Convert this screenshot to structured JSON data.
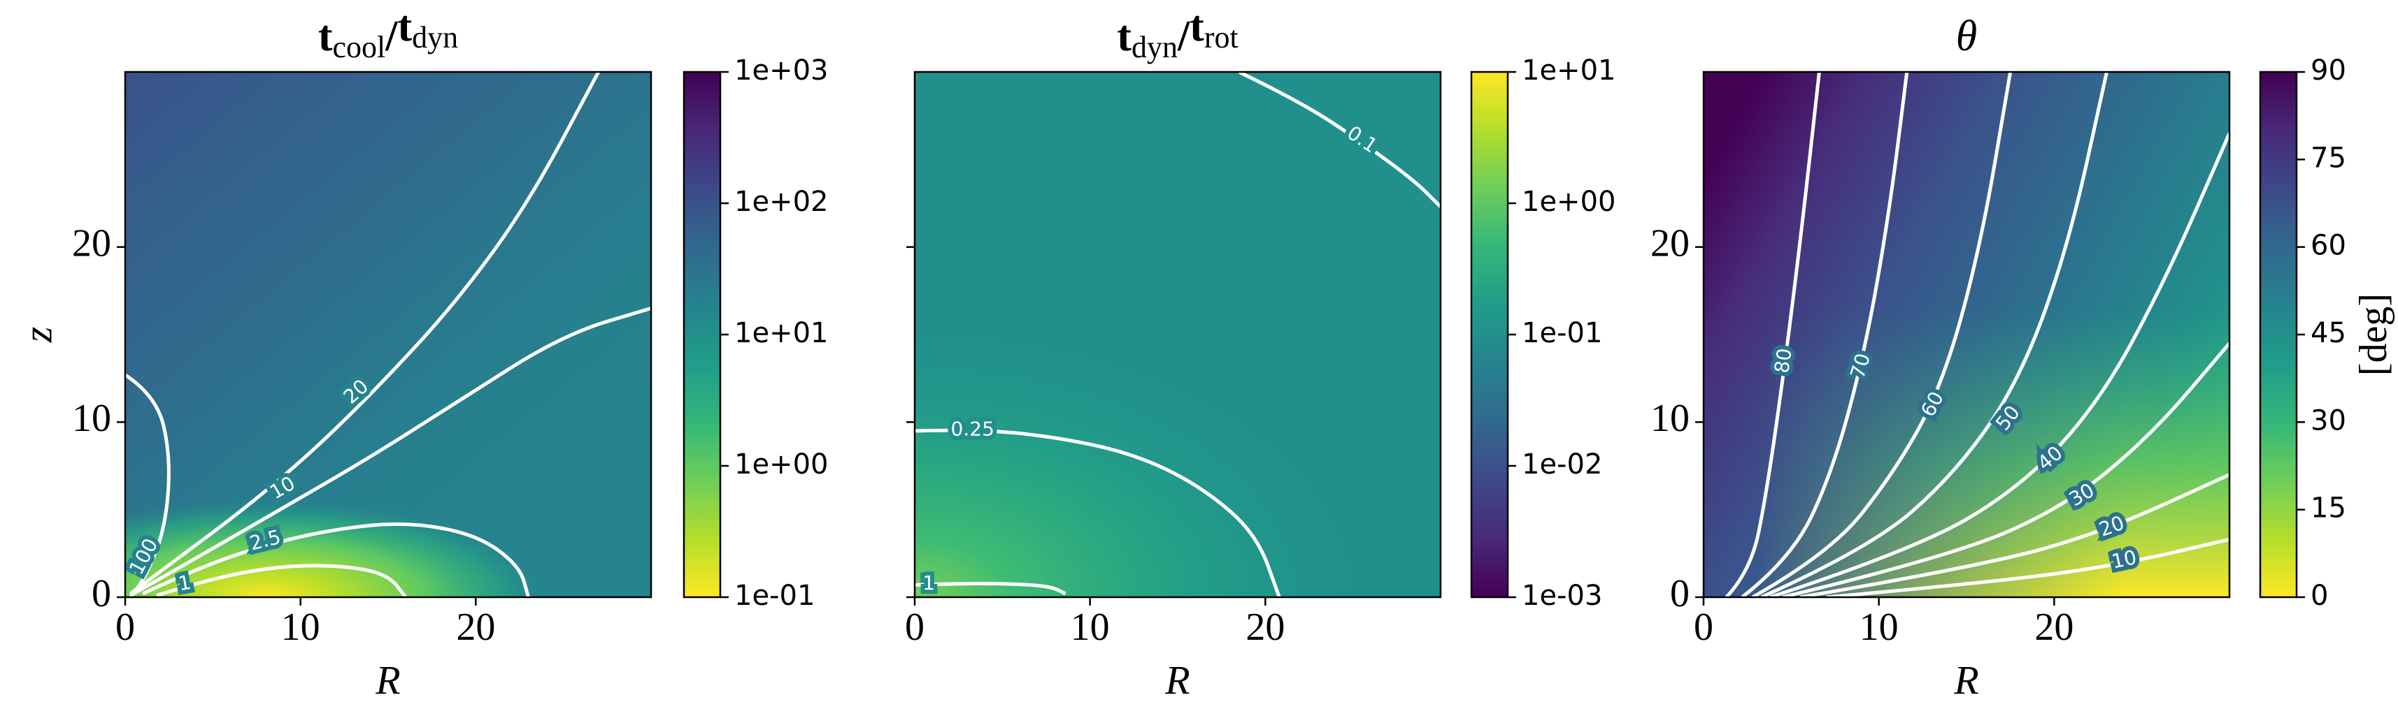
{
  "chart_data": [
    {
      "type": "heatmap",
      "title": [
        "t",
        "cool",
        "/",
        "t",
        "dyn"
      ],
      "xlabel": "R",
      "ylabel": "z",
      "xlim": [
        0,
        30
      ],
      "ylim": [
        0,
        30
      ],
      "xticks": [
        0,
        10,
        20
      ],
      "yticks": [
        0,
        10,
        20
      ],
      "ytick_labels": true,
      "contour_levels": [
        100,
        20,
        10,
        2.5,
        1
      ],
      "contour_color": "#ffffff",
      "colorbar": {
        "colormap": "viridis_r",
        "log": true,
        "lim": [
          0.1,
          1000
        ],
        "ticks": [
          {
            "value": 0.1,
            "label": "1e-01"
          },
          {
            "value": 1,
            "label": "1e+00"
          },
          {
            "value": 10,
            "label": "1e+01"
          },
          {
            "value": 100,
            "label": "1e+02"
          },
          {
            "value": 1000,
            "label": "1e+03"
          }
        ]
      }
    },
    {
      "type": "heatmap",
      "title": [
        "t",
        "dyn",
        "/",
        "t",
        "rot"
      ],
      "xlabel": "R",
      "xlim": [
        0,
        30
      ],
      "ylim": [
        0,
        30
      ],
      "xticks": [
        0,
        10,
        20
      ],
      "yticks": [
        0,
        10,
        20
      ],
      "ytick_labels": false,
      "contour_levels": [
        0.1,
        0.25,
        1
      ],
      "contour_color": "#ffffff",
      "colorbar": {
        "colormap": "viridis",
        "log": true,
        "lim": [
          0.001,
          10
        ],
        "ticks": [
          {
            "value": 0.001,
            "label": "1e-03"
          },
          {
            "value": 0.01,
            "label": "1e-02"
          },
          {
            "value": 0.1,
            "label": "1e-01"
          },
          {
            "value": 1,
            "label": "1e+00"
          },
          {
            "value": 10,
            "label": "1e+01"
          }
        ]
      }
    },
    {
      "type": "heatmap",
      "title": [
        "θ"
      ],
      "xlabel": "R",
      "xlim": [
        0,
        30
      ],
      "ylim": [
        0,
        30
      ],
      "xticks": [
        0,
        10,
        20
      ],
      "yticks": [
        0,
        10,
        20
      ],
      "ytick_labels": true,
      "contour_levels": [
        80,
        70,
        60,
        50,
        40,
        30,
        20,
        10
      ],
      "contour_color": "#ffffff",
      "colorbar": {
        "colormap": "viridis_r",
        "log": false,
        "lim": [
          0,
          90
        ],
        "label": "[deg]",
        "ticks": [
          0,
          15,
          30,
          45,
          60,
          75,
          90
        ]
      }
    }
  ]
}
